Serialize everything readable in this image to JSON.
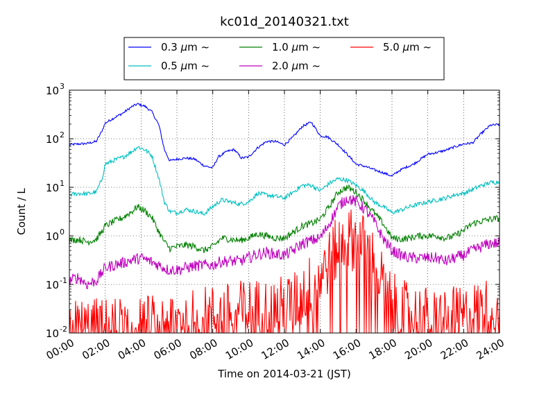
{
  "chart_data": {
    "type": "line",
    "title": "kc01d_20140321.txt",
    "xlabel": "Time on 2014-03-21 (JST)",
    "ylabel": "Count / L",
    "y_scale": "log",
    "ylim": [
      0.01,
      1000
    ],
    "xlim_hours": [
      0,
      24
    ],
    "x_ticks": [
      "00:00",
      "02:00",
      "04:00",
      "06:00",
      "08:00",
      "10:00",
      "12:00",
      "14:00",
      "16:00",
      "18:00",
      "20:00",
      "22:00",
      "24:00"
    ],
    "y_ticks": [
      {
        "base": "10",
        "exp": "-2",
        "value": 0.01
      },
      {
        "base": "10",
        "exp": "-1",
        "value": 0.1
      },
      {
        "base": "10",
        "exp": "0",
        "value": 1
      },
      {
        "base": "10",
        "exp": "1",
        "value": 10
      },
      {
        "base": "10",
        "exp": "2",
        "value": 100
      },
      {
        "base": "10",
        "exp": "3",
        "value": 1000
      }
    ],
    "grid": true,
    "legend_position": "top-center",
    "series": [
      {
        "name_pre": "0.3 ",
        "name_mu": "μ",
        "name_post": "m  ~",
        "color": "#0000ff",
        "noise": 0.025,
        "points": [
          [
            0,
            75
          ],
          [
            0.5,
            78
          ],
          [
            1,
            80
          ],
          [
            1.5,
            88
          ],
          [
            1.8,
            140
          ],
          [
            2,
            210
          ],
          [
            2.5,
            270
          ],
          [
            3,
            340
          ],
          [
            3.5,
            460
          ],
          [
            3.8,
            520
          ],
          [
            4.2,
            470
          ],
          [
            4.6,
            360
          ],
          [
            5,
            190
          ],
          [
            5.3,
            60
          ],
          [
            5.6,
            35
          ],
          [
            6,
            38
          ],
          [
            6.5,
            40
          ],
          [
            7,
            38
          ],
          [
            7.5,
            28
          ],
          [
            8,
            25
          ],
          [
            8.3,
            42
          ],
          [
            8.8,
            55
          ],
          [
            9.2,
            60
          ],
          [
            9.6,
            40
          ],
          [
            10,
            42
          ],
          [
            10.5,
            65
          ],
          [
            11,
            88
          ],
          [
            11.5,
            88
          ],
          [
            12,
            75
          ],
          [
            12.5,
            110
          ],
          [
            13,
            180
          ],
          [
            13.5,
            220
          ],
          [
            13.8,
            150
          ],
          [
            14,
            115
          ],
          [
            14.4,
            110
          ],
          [
            15,
            75
          ],
          [
            15.5,
            48
          ],
          [
            16,
            30
          ],
          [
            16.5,
            27
          ],
          [
            17,
            23
          ],
          [
            17.5,
            20
          ],
          [
            18,
            17
          ],
          [
            18.4,
            22
          ],
          [
            18.8,
            26
          ],
          [
            19.2,
            30
          ],
          [
            19.6,
            38
          ],
          [
            20,
            48
          ],
          [
            20.5,
            52
          ],
          [
            21,
            58
          ],
          [
            21.5,
            68
          ],
          [
            22,
            78
          ],
          [
            22.5,
            82
          ],
          [
            23,
            130
          ],
          [
            23.5,
            190
          ],
          [
            24,
            195
          ]
        ]
      },
      {
        "name_pre": "0.5 ",
        "name_mu": "μ",
        "name_post": "m  ~",
        "color": "#00bfbf",
        "noise": 0.045,
        "points": [
          [
            0,
            7
          ],
          [
            0.5,
            7.5
          ],
          [
            1,
            7.3
          ],
          [
            1.5,
            8
          ],
          [
            1.8,
            14
          ],
          [
            2,
            30
          ],
          [
            2.5,
            36
          ],
          [
            3,
            42
          ],
          [
            3.5,
            55
          ],
          [
            3.8,
            68
          ],
          [
            4.2,
            60
          ],
          [
            4.6,
            45
          ],
          [
            5,
            15
          ],
          [
            5.3,
            5
          ],
          [
            5.6,
            3.2
          ],
          [
            6,
            3
          ],
          [
            6.5,
            3.5
          ],
          [
            7,
            3.2
          ],
          [
            7.5,
            2.8
          ],
          [
            8,
            4
          ],
          [
            8.5,
            5.5
          ],
          [
            9,
            5
          ],
          [
            9.5,
            4.5
          ],
          [
            10,
            5
          ],
          [
            10.5,
            7.5
          ],
          [
            11,
            7
          ],
          [
            11.5,
            6.5
          ],
          [
            12,
            6
          ],
          [
            12.5,
            8
          ],
          [
            13,
            11
          ],
          [
            13.5,
            11
          ],
          [
            14,
            8.5
          ],
          [
            14.5,
            12
          ],
          [
            15,
            15
          ],
          [
            15.5,
            14
          ],
          [
            16,
            11
          ],
          [
            16.5,
            8
          ],
          [
            17,
            5
          ],
          [
            17.5,
            4
          ],
          [
            18,
            3
          ],
          [
            18.5,
            3.4
          ],
          [
            19,
            4
          ],
          [
            19.5,
            4.5
          ],
          [
            20,
            5
          ],
          [
            20.5,
            5.5
          ],
          [
            21,
            6
          ],
          [
            21.5,
            7
          ],
          [
            22,
            7.5
          ],
          [
            22.5,
            9
          ],
          [
            23,
            11
          ],
          [
            23.5,
            12.5
          ],
          [
            24,
            13
          ]
        ]
      },
      {
        "name_pre": "1.0 ",
        "name_mu": "μ",
        "name_post": "m  ~",
        "color": "#008000",
        "noise": 0.07,
        "points": [
          [
            0,
            0.8
          ],
          [
            0.5,
            0.85
          ],
          [
            1,
            0.75
          ],
          [
            1.5,
            0.85
          ],
          [
            1.8,
            1.2
          ],
          [
            2,
            1.6
          ],
          [
            2.5,
            2
          ],
          [
            3,
            2.4
          ],
          [
            3.5,
            3.2
          ],
          [
            3.8,
            4
          ],
          [
            4.2,
            3.3
          ],
          [
            4.6,
            2.4
          ],
          [
            5,
            1.2
          ],
          [
            5.3,
            0.75
          ],
          [
            5.6,
            0.55
          ],
          [
            6,
            0.6
          ],
          [
            6.5,
            0.65
          ],
          [
            7,
            0.6
          ],
          [
            7.5,
            0.5
          ],
          [
            8,
            0.6
          ],
          [
            8.5,
            0.9
          ],
          [
            9,
            0.85
          ],
          [
            9.5,
            0.8
          ],
          [
            10,
            0.9
          ],
          [
            10.5,
            1.1
          ],
          [
            11,
            1
          ],
          [
            11.5,
            0.9
          ],
          [
            12,
            0.9
          ],
          [
            12.5,
            1.2
          ],
          [
            13,
            1.6
          ],
          [
            13.5,
            1.8
          ],
          [
            14,
            2.2
          ],
          [
            14.5,
            4
          ],
          [
            15,
            8
          ],
          [
            15.5,
            10
          ],
          [
            16,
            8
          ],
          [
            16.5,
            5
          ],
          [
            17,
            3
          ],
          [
            17.5,
            1.8
          ],
          [
            18,
            0.9
          ],
          [
            18.5,
            0.85
          ],
          [
            19,
            0.9
          ],
          [
            19.5,
            1
          ],
          [
            20,
            1
          ],
          [
            20.5,
            1
          ],
          [
            21,
            0.9
          ],
          [
            21.5,
            1
          ],
          [
            22,
            1.3
          ],
          [
            22.5,
            1.8
          ],
          [
            23,
            2
          ],
          [
            23.5,
            2.2
          ],
          [
            24,
            2.3
          ]
        ]
      },
      {
        "name_pre": "2.0 ",
        "name_mu": "μ",
        "name_post": "m  ~",
        "color": "#bf00bf",
        "noise": 0.12,
        "points": [
          [
            0,
            0.12
          ],
          [
            0.5,
            0.14
          ],
          [
            1,
            0.1
          ],
          [
            1.5,
            0.12
          ],
          [
            1.8,
            0.17
          ],
          [
            2,
            0.22
          ],
          [
            2.5,
            0.25
          ],
          [
            3,
            0.28
          ],
          [
            3.5,
            0.32
          ],
          [
            4,
            0.35
          ],
          [
            4.5,
            0.3
          ],
          [
            5,
            0.25
          ],
          [
            5.5,
            0.2
          ],
          [
            6,
            0.2
          ],
          [
            6.5,
            0.22
          ],
          [
            7,
            0.24
          ],
          [
            7.5,
            0.25
          ],
          [
            8,
            0.25
          ],
          [
            8.5,
            0.3
          ],
          [
            9,
            0.3
          ],
          [
            9.5,
            0.3
          ],
          [
            10,
            0.35
          ],
          [
            10.5,
            0.42
          ],
          [
            11,
            0.45
          ],
          [
            11.5,
            0.42
          ],
          [
            12,
            0.4
          ],
          [
            12.5,
            0.5
          ],
          [
            13,
            0.7
          ],
          [
            13.5,
            0.8
          ],
          [
            14,
            0.9
          ],
          [
            14.5,
            1.8
          ],
          [
            15,
            4
          ],
          [
            15.5,
            6
          ],
          [
            16,
            5
          ],
          [
            16.5,
            3.5
          ],
          [
            17,
            2
          ],
          [
            17.5,
            0.9
          ],
          [
            18,
            0.5
          ],
          [
            18.5,
            0.4
          ],
          [
            19,
            0.35
          ],
          [
            19.5,
            0.35
          ],
          [
            20,
            0.35
          ],
          [
            20.5,
            0.35
          ],
          [
            21,
            0.3
          ],
          [
            21.5,
            0.35
          ],
          [
            22,
            0.4
          ],
          [
            22.5,
            0.5
          ],
          [
            23,
            0.6
          ],
          [
            23.5,
            0.7
          ],
          [
            24,
            0.7
          ]
        ]
      },
      {
        "name_pre": "5.0 ",
        "name_mu": "μ",
        "name_post": "m  ~",
        "color": "#ff0000",
        "noise": 0.3,
        "points": [
          [
            0,
            0.012
          ],
          [
            2,
            0.012
          ],
          [
            3,
            0.013
          ],
          [
            4,
            0.014
          ],
          [
            5,
            0.015
          ],
          [
            6,
            0.018
          ],
          [
            7,
            0.02
          ],
          [
            8,
            0.022
          ],
          [
            9,
            0.025
          ],
          [
            10,
            0.03
          ],
          [
            11,
            0.03
          ],
          [
            12,
            0.035
          ],
          [
            12.5,
            0.04
          ],
          [
            13,
            0.06
          ],
          [
            13.5,
            0.1
          ],
          [
            14,
            0.15
          ],
          [
            14.5,
            0.3
          ],
          [
            15,
            0.6
          ],
          [
            15.5,
            0.9
          ],
          [
            16,
            0.8
          ],
          [
            16.5,
            0.6
          ],
          [
            17,
            0.3
          ],
          [
            17.5,
            0.1
          ],
          [
            18,
            0.04
          ],
          [
            18.5,
            0.03
          ],
          [
            19,
            0.025
          ],
          [
            20,
            0.02
          ],
          [
            21,
            0.02
          ],
          [
            22,
            0.02
          ],
          [
            22.5,
            0.025
          ],
          [
            23,
            0.03
          ],
          [
            23.5,
            0.03
          ],
          [
            24,
            0.03
          ]
        ]
      }
    ]
  }
}
